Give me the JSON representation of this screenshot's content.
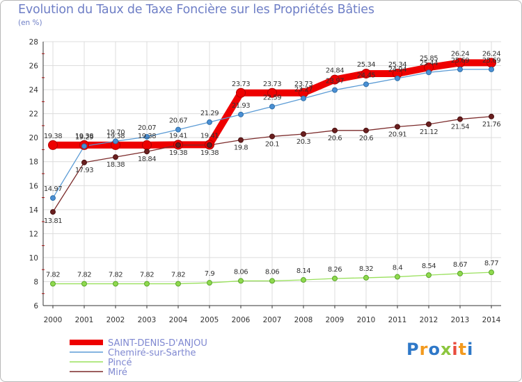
{
  "chart_data": {
    "type": "line",
    "title": "Evolution du Taux de Taxe Foncière sur les Propriétés Bâties",
    "ylabel": "(en %)",
    "xlabel": "",
    "ylim": [
      6,
      28
    ],
    "yticks": [
      6,
      8,
      10,
      12,
      14,
      16,
      18,
      20,
      22,
      24,
      26,
      28
    ],
    "grid": true,
    "legend_position": "bottom-left",
    "categories": [
      "2000",
      "2001",
      "2002",
      "2003",
      "2004",
      "2005",
      "2006",
      "2007",
      "2008",
      "2009",
      "2010",
      "2011",
      "2012",
      "2013",
      "2014"
    ],
    "series": [
      {
        "name": "SAINT-DENIS-D'ANJOU",
        "color": "#ee0000",
        "values": [
          19.38,
          19.38,
          19.38,
          19.38,
          19.41,
          19.41,
          23.73,
          23.73,
          23.73,
          24.84,
          25.34,
          25.34,
          25.85,
          26.24,
          26.24
        ],
        "labels": [
          "19.38",
          "19.38",
          "19.38",
          "19.38",
          "19.41",
          "19.41",
          "23.73",
          "23.73",
          "23.73",
          "24.84",
          "25.34",
          "25.34",
          "25.85",
          "26.24",
          "26.24"
        ]
      },
      {
        "name": "Chemiré-sur-Sarthe",
        "color": "#5b9bd5",
        "values": [
          14.97,
          19.29,
          19.7,
          20.07,
          20.67,
          21.29,
          21.93,
          22.59,
          23.27,
          23.97,
          24.45,
          24.94,
          25.44,
          25.69,
          25.69
        ],
        "labels": [
          "14.97",
          "19.29",
          "19.70",
          "20.07",
          "20.67",
          "21.29",
          "21.93",
          "22.59",
          "23.27",
          "23.97",
          "24.45",
          "24.94",
          "25.44",
          "25.69",
          "25.69"
        ]
      },
      {
        "name": "Pincé",
        "color": "#99e05c",
        "values": [
          7.82,
          7.82,
          7.82,
          7.82,
          7.82,
          7.9,
          8.06,
          8.06,
          8.14,
          8.26,
          8.32,
          8.4,
          8.54,
          8.67,
          8.77
        ],
        "labels": [
          "7.82",
          "7.82",
          "7.82",
          "7.82",
          "7.82",
          "7.9",
          "8.06",
          "8.06",
          "8.14",
          "8.26",
          "8.32",
          "8.4",
          "8.54",
          "8.67",
          "8.77"
        ]
      },
      {
        "name": "Miré",
        "color": "#7b2a2a",
        "values": [
          13.81,
          17.93,
          18.38,
          18.84,
          19.38,
          19.38,
          19.8,
          20.1,
          20.3,
          20.6,
          20.6,
          20.91,
          21.12,
          21.54,
          21.76
        ],
        "labels": [
          "13.81",
          "17.93",
          "18.38",
          "18.84",
          "19.38",
          "19.38",
          "19.8",
          "20.1",
          "20.3",
          "20.6",
          "20.6",
          "20.91",
          "21.12",
          "21.54",
          "21.76"
        ]
      }
    ]
  },
  "logo": {
    "text": "Proxiti",
    "colors": [
      "#2e78c8",
      "#f39a1e",
      "#2e78c8",
      "#8cc63e",
      "#e84c3d",
      "#f39a1e",
      "#2e78c8"
    ]
  }
}
